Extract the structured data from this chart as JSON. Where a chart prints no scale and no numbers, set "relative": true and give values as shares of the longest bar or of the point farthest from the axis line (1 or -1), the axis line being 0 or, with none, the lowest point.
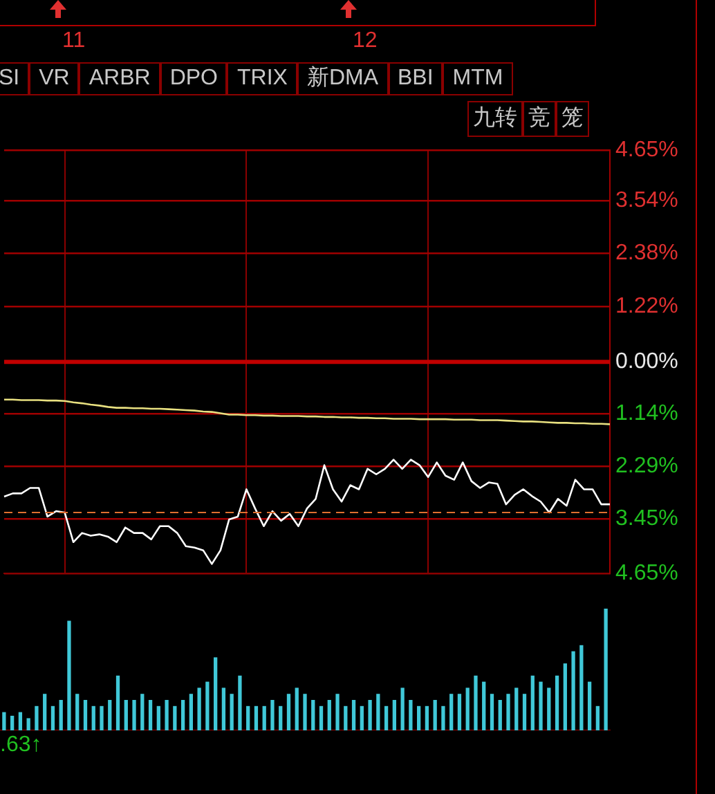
{
  "chart_data": [
    {
      "type": "line",
      "annotations": [
        "11",
        "12",
        "SI",
        "VR",
        "ARBR",
        "DPO",
        "TRIX",
        "新DMA",
        "BBI",
        "MTM",
        "九转",
        "竞",
        "笼",
        ".63↑"
      ],
      "categories": [
        null,
        null,
        null,
        null,
        null,
        null,
        null,
        null,
        null,
        null,
        null,
        null,
        null,
        null,
        null,
        null,
        null,
        null,
        null,
        null,
        null,
        null,
        null,
        null,
        null,
        null,
        null,
        null,
        null,
        null,
        null,
        null,
        null,
        null,
        null,
        null,
        null,
        null,
        null,
        null,
        null,
        null,
        null,
        null,
        null,
        null,
        null,
        null,
        null,
        null,
        null,
        null,
        null,
        null,
        null,
        null,
        null,
        null,
        null,
        null,
        null,
        null,
        null,
        null,
        null,
        null,
        null,
        null,
        null,
        null,
        null
      ],
      "ylim": [
        -4.65,
        4.65
      ],
      "yticks": [
        {
          "value": 4.65,
          "label": "4.65%"
        },
        {
          "value": 3.54,
          "label": "3.54%"
        },
        {
          "value": 2.38,
          "label": "2.38%"
        },
        {
          "value": 1.22,
          "label": "1.22%"
        },
        {
          "value": 0,
          "label": "0.00%"
        },
        {
          "value": -1.14,
          "label": "1.14%"
        },
        {
          "value": -2.29,
          "label": "2.29%"
        },
        {
          "value": -3.45,
          "label": "3.45%"
        },
        {
          "value": -4.65,
          "label": "4.65%"
        }
      ],
      "grid": true,
      "legend": false,
      "marker": "none",
      "line_style": "solid",
      "ref_lines": [
        {
          "axis": "y",
          "value": 0,
          "label": null,
          "color": "#c00000",
          "line_style": "solid"
        },
        {
          "axis": "y",
          "value": -3.31,
          "label": null,
          "color": "#e07030",
          "line_style": "dashed"
        }
      ],
      "series": [
        {
          "color": "#ffffff",
          "values": [
            -2.96,
            -2.89,
            -2.89,
            -2.77,
            -2.77,
            -3.4,
            -3.28,
            -3.31,
            -3.96,
            -3.76,
            -3.82,
            -3.79,
            -3.84,
            -3.96,
            -3.64,
            -3.76,
            -3.76,
            -3.9,
            -3.61,
            -3.61,
            -3.76,
            -4.05,
            -4.08,
            -4.14,
            -4.44,
            -4.14,
            -3.46,
            -3.4,
            -2.8,
            -3.22,
            -3.61,
            -3.28,
            -3.49,
            -3.34,
            -3.61,
            -3.22,
            -3.01,
            -2.27,
            -2.8,
            -3.07,
            -2.71,
            -2.8,
            -2.35,
            -2.47,
            -2.35,
            -2.15,
            -2.35,
            -2.15,
            -2.27,
            -2.53,
            -2.21,
            -2.5,
            -2.59,
            -2.21,
            -2.62,
            -2.77,
            -2.65,
            -2.68,
            -3.13,
            -2.92,
            -2.8,
            -2.95,
            -3.07,
            -3.31,
            -3.01,
            -3.16,
            -2.59,
            -2.8,
            -2.8,
            -3.13,
            -3.13
          ]
        },
        {
          "color": "#e8e080",
          "values": [
            -0.83,
            -0.83,
            -0.84,
            -0.84,
            -0.84,
            -0.85,
            -0.85,
            -0.86,
            -0.89,
            -0.91,
            -0.94,
            -0.96,
            -0.99,
            -1.01,
            -1.01,
            -1.02,
            -1.02,
            -1.03,
            -1.03,
            -1.04,
            -1.05,
            -1.06,
            -1.07,
            -1.09,
            -1.1,
            -1.13,
            -1.16,
            -1.16,
            -1.17,
            -1.17,
            -1.18,
            -1.18,
            -1.19,
            -1.19,
            -1.19,
            -1.2,
            -1.2,
            -1.21,
            -1.21,
            -1.22,
            -1.22,
            -1.23,
            -1.23,
            -1.24,
            -1.24,
            -1.25,
            -1.25,
            -1.25,
            -1.26,
            -1.26,
            -1.26,
            -1.26,
            -1.27,
            -1.27,
            -1.27,
            -1.28,
            -1.28,
            -1.28,
            -1.29,
            -1.3,
            -1.31,
            -1.31,
            -1.32,
            -1.33,
            -1.34,
            -1.34,
            -1.35,
            -1.35,
            -1.36,
            -1.36,
            -1.37
          ]
        }
      ]
    },
    {
      "type": "bar",
      "relative": true,
      "color": "#40c8d8",
      "legend": false,
      "grid": false,
      "categories": [
        null,
        null,
        null,
        null,
        null,
        null,
        null,
        null,
        null,
        null,
        null,
        null,
        null,
        null,
        null,
        null,
        null,
        null,
        null,
        null,
        null,
        null,
        null,
        null,
        null,
        null,
        null,
        null,
        null,
        null,
        null,
        null,
        null,
        null,
        null,
        null,
        null,
        null,
        null,
        null,
        null,
        null,
        null,
        null,
        null,
        null,
        null,
        null,
        null,
        null,
        null,
        null,
        null,
        null,
        null,
        null,
        null,
        null,
        null,
        null,
        null,
        null,
        null,
        null,
        null,
        null,
        null,
        null,
        null,
        null,
        null,
        null,
        null,
        null,
        null
      ],
      "values": [
        0.15,
        0.12,
        0.15,
        0.1,
        0.2,
        0.3,
        0.2,
        0.25,
        0.9,
        0.3,
        0.25,
        0.2,
        0.2,
        0.25,
        0.45,
        0.25,
        0.25,
        0.3,
        0.25,
        0.2,
        0.25,
        0.2,
        0.25,
        0.3,
        0.35,
        0.4,
        0.6,
        0.35,
        0.3,
        0.45,
        0.2,
        0.2,
        0.2,
        0.25,
        0.2,
        0.3,
        0.35,
        0.3,
        0.25,
        0.2,
        0.25,
        0.3,
        0.2,
        0.25,
        0.2,
        0.25,
        0.3,
        0.2,
        0.25,
        0.35,
        0.25,
        0.2,
        0.2,
        0.25,
        0.2,
        0.3,
        0.3,
        0.35,
        0.45,
        0.4,
        0.3,
        0.25,
        0.3,
        0.35,
        0.3,
        0.45,
        0.4,
        0.35,
        0.45,
        0.55,
        0.65,
        0.7,
        0.4,
        0.2,
        1.0
      ]
    }
  ]
}
